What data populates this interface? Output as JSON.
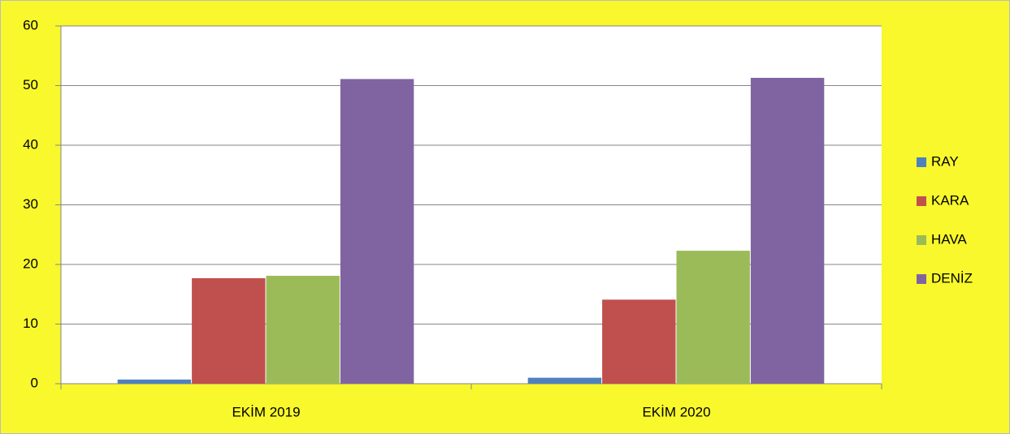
{
  "chart_data": {
    "type": "bar",
    "categories": [
      "EKİM 2019",
      "EKİM 2020"
    ],
    "series": [
      {
        "name": "RAY",
        "color": "#4f81bd",
        "values": [
          0.7,
          1.0
        ]
      },
      {
        "name": "KARA",
        "color": "#c0504d",
        "values": [
          17.7,
          14.1
        ]
      },
      {
        "name": "HAVA",
        "color": "#9bbb59",
        "values": [
          18.1,
          22.3
        ]
      },
      {
        "name": "DENİZ",
        "color": "#8064a2",
        "values": [
          51.1,
          51.3
        ]
      }
    ],
    "ylim": [
      0,
      60
    ],
    "yticks": [
      0,
      10,
      20,
      30,
      40,
      50,
      60
    ],
    "grid": true,
    "legend": "right"
  }
}
